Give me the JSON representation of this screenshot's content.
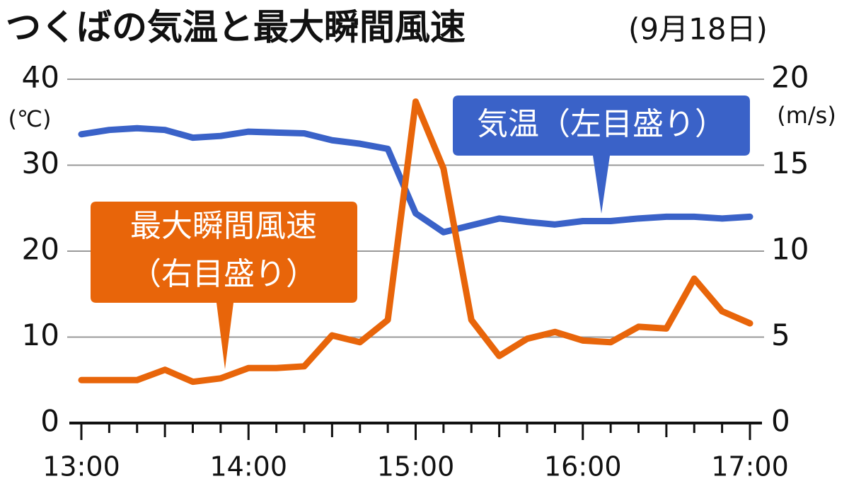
{
  "chart_data": {
    "type": "line",
    "title": "つくばの気温と最大瞬間風速",
    "subtitle": "(9月18日)",
    "ylabel": "(℃)",
    "y2label": "(m/s)",
    "annotations": [
      "気温（左目盛り）",
      "最大瞬間風速",
      "（右目盛り）"
    ],
    "categories": [
      "13:00",
      null,
      null,
      null,
      null,
      null,
      "14:00",
      null,
      null,
      null,
      null,
      null,
      "15:00",
      null,
      null,
      null,
      null,
      null,
      "16:00",
      null,
      null,
      null,
      null,
      null,
      "17:00"
    ],
    "series": [
      {
        "color": "#3a62c8",
        "values": [
          33.6,
          34.1,
          34.3,
          34.1,
          33.2,
          33.4,
          33.9,
          33.8,
          33.7,
          32.9,
          32.5,
          31.9,
          24.4,
          22.2,
          23.0,
          23.8,
          23.4,
          23.1,
          23.5,
          23.5,
          23.8,
          24.0,
          24.0,
          23.8,
          24.0
        ]
      },
      {
        "color": "#e8650a",
        "axis": "y2",
        "values": [
          2.5,
          2.5,
          2.5,
          3.1,
          2.4,
          2.6,
          3.2,
          3.2,
          3.3,
          5.1,
          4.7,
          6.0,
          18.7,
          14.8,
          6.0,
          3.9,
          4.9,
          5.3,
          4.8,
          4.7,
          5.6,
          5.5,
          8.4,
          6.5,
          5.8
        ]
      }
    ],
    "ylim": [
      0,
      40
    ],
    "yticks": [
      0,
      10,
      20,
      30,
      40
    ],
    "y2lim": [
      0,
      20
    ],
    "y2ticks": [
      0,
      5,
      10,
      15,
      20
    ],
    "grid": true
  }
}
